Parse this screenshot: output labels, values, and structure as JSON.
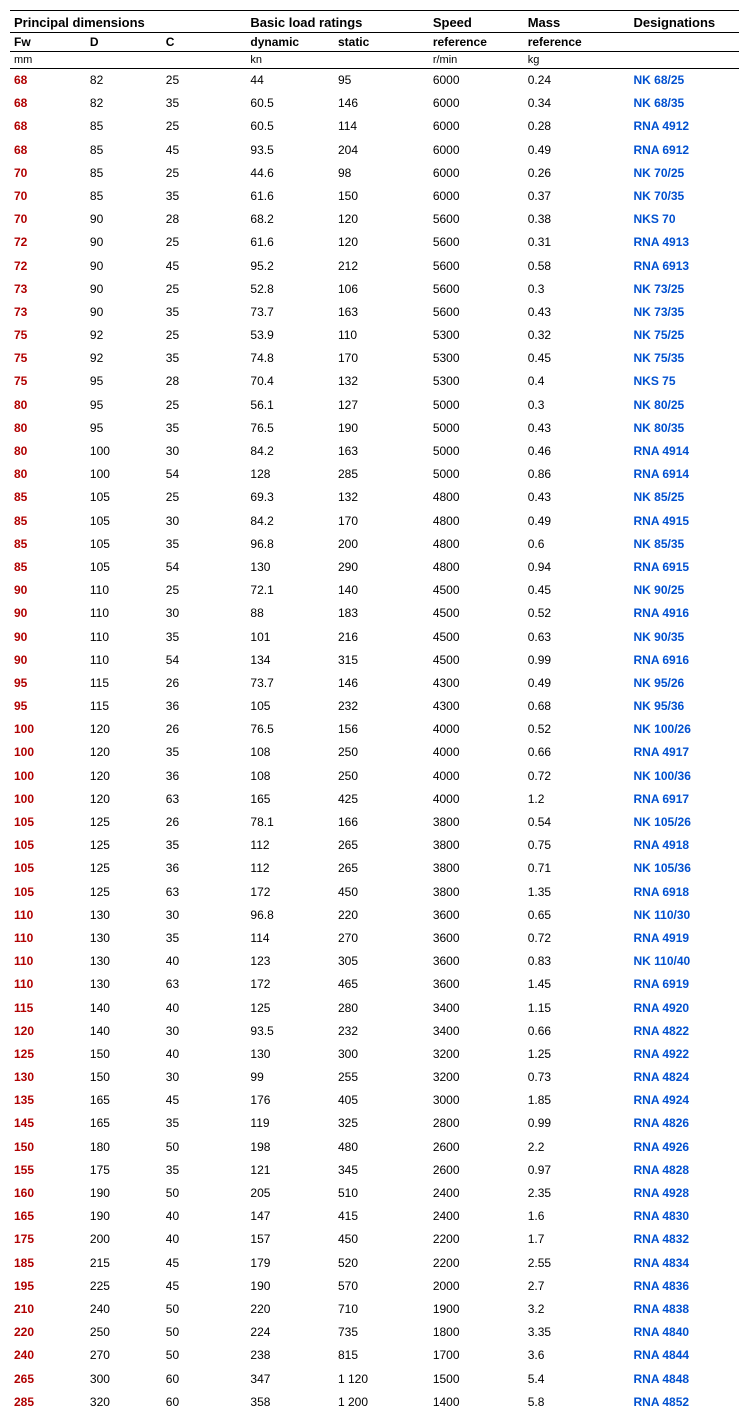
{
  "columns": {
    "group_principal": "Principal dimensions",
    "group_basic": "Basic load ratings",
    "group_speed": "Speed",
    "group_mass": "Mass",
    "group_designations": "Designations",
    "sub_fw": "Fw",
    "sub_d": "D",
    "sub_c": "C",
    "sub_dynamic": "dynamic",
    "sub_static": "static",
    "sub_speed": "reference",
    "sub_mass": "reference",
    "unit_mm": "mm",
    "unit_kn": "kn",
    "unit_speed": "r/min",
    "unit_mass": "kg"
  },
  "colors": {
    "fw_color": "#b00000",
    "link_color": "#0050d0",
    "text_color": "#000000",
    "background": "#ffffff",
    "border": "#000000"
  },
  "rows": [
    {
      "fw": "68",
      "d": "82",
      "c": "25",
      "dyn": "44",
      "stat": "95",
      "speed": "6000",
      "mass": "0.24",
      "des": "NK 68/25"
    },
    {
      "fw": "68",
      "d": "82",
      "c": "35",
      "dyn": "60.5",
      "stat": "146",
      "speed": "6000",
      "mass": "0.34",
      "des": "NK 68/35"
    },
    {
      "fw": "68",
      "d": "85",
      "c": "25",
      "dyn": "60.5",
      "stat": "114",
      "speed": "6000",
      "mass": "0.28",
      "des": "RNA 4912"
    },
    {
      "fw": "68",
      "d": "85",
      "c": "45",
      "dyn": "93.5",
      "stat": "204",
      "speed": "6000",
      "mass": "0.49",
      "des": "RNA 6912"
    },
    {
      "fw": "70",
      "d": "85",
      "c": "25",
      "dyn": "44.6",
      "stat": "98",
      "speed": "6000",
      "mass": "0.26",
      "des": "NK 70/25"
    },
    {
      "fw": "70",
      "d": "85",
      "c": "35",
      "dyn": "61.6",
      "stat": "150",
      "speed": "6000",
      "mass": "0.37",
      "des": "NK 70/35"
    },
    {
      "fw": "70",
      "d": "90",
      "c": "28",
      "dyn": "68.2",
      "stat": "120",
      "speed": "5600",
      "mass": "0.38",
      "des": "NKS 70"
    },
    {
      "fw": "72",
      "d": "90",
      "c": "25",
      "dyn": "61.6",
      "stat": "120",
      "speed": "5600",
      "mass": "0.31",
      "des": "RNA 4913"
    },
    {
      "fw": "72",
      "d": "90",
      "c": "45",
      "dyn": "95.2",
      "stat": "212",
      "speed": "5600",
      "mass": "0.58",
      "des": "RNA 6913"
    },
    {
      "fw": "73",
      "d": "90",
      "c": "25",
      "dyn": "52.8",
      "stat": "106",
      "speed": "5600",
      "mass": "0.3",
      "des": "NK 73/25"
    },
    {
      "fw": "73",
      "d": "90",
      "c": "35",
      "dyn": "73.7",
      "stat": "163",
      "speed": "5600",
      "mass": "0.43",
      "des": "NK 73/35"
    },
    {
      "fw": "75",
      "d": "92",
      "c": "25",
      "dyn": "53.9",
      "stat": "110",
      "speed": "5300",
      "mass": "0.32",
      "des": "NK 75/25"
    },
    {
      "fw": "75",
      "d": "92",
      "c": "35",
      "dyn": "74.8",
      "stat": "170",
      "speed": "5300",
      "mass": "0.45",
      "des": "NK 75/35"
    },
    {
      "fw": "75",
      "d": "95",
      "c": "28",
      "dyn": "70.4",
      "stat": "132",
      "speed": "5300",
      "mass": "0.4",
      "des": "NKS 75"
    },
    {
      "fw": "80",
      "d": "95",
      "c": "25",
      "dyn": "56.1",
      "stat": "127",
      "speed": "5000",
      "mass": "0.3",
      "des": "NK 80/25"
    },
    {
      "fw": "80",
      "d": "95",
      "c": "35",
      "dyn": "76.5",
      "stat": "190",
      "speed": "5000",
      "mass": "0.43",
      "des": "NK 80/35"
    },
    {
      "fw": "80",
      "d": "100",
      "c": "30",
      "dyn": "84.2",
      "stat": "163",
      "speed": "5000",
      "mass": "0.46",
      "des": "RNA 4914"
    },
    {
      "fw": "80",
      "d": "100",
      "c": "54",
      "dyn": "128",
      "stat": "285",
      "speed": "5000",
      "mass": "0.86",
      "des": "RNA 6914"
    },
    {
      "fw": "85",
      "d": "105",
      "c": "25",
      "dyn": "69.3",
      "stat": "132",
      "speed": "4800",
      "mass": "0.43",
      "des": "NK 85/25"
    },
    {
      "fw": "85",
      "d": "105",
      "c": "30",
      "dyn": "84.2",
      "stat": "170",
      "speed": "4800",
      "mass": "0.49",
      "des": "RNA 4915"
    },
    {
      "fw": "85",
      "d": "105",
      "c": "35",
      "dyn": "96.8",
      "stat": "200",
      "speed": "4800",
      "mass": "0.6",
      "des": "NK 85/35"
    },
    {
      "fw": "85",
      "d": "105",
      "c": "54",
      "dyn": "130",
      "stat": "290",
      "speed": "4800",
      "mass": "0.94",
      "des": "RNA 6915"
    },
    {
      "fw": "90",
      "d": "110",
      "c": "25",
      "dyn": "72.1",
      "stat": "140",
      "speed": "4500",
      "mass": "0.45",
      "des": "NK 90/25"
    },
    {
      "fw": "90",
      "d": "110",
      "c": "30",
      "dyn": "88",
      "stat": "183",
      "speed": "4500",
      "mass": "0.52",
      "des": "RNA 4916"
    },
    {
      "fw": "90",
      "d": "110",
      "c": "35",
      "dyn": "101",
      "stat": "216",
      "speed": "4500",
      "mass": "0.63",
      "des": "NK 90/35"
    },
    {
      "fw": "90",
      "d": "110",
      "c": "54",
      "dyn": "134",
      "stat": "315",
      "speed": "4500",
      "mass": "0.99",
      "des": "RNA 6916"
    },
    {
      "fw": "95",
      "d": "115",
      "c": "26",
      "dyn": "73.7",
      "stat": "146",
      "speed": "4300",
      "mass": "0.49",
      "des": "NK 95/26"
    },
    {
      "fw": "95",
      "d": "115",
      "c": "36",
      "dyn": "105",
      "stat": "232",
      "speed": "4300",
      "mass": "0.68",
      "des": "NK 95/36"
    },
    {
      "fw": "100",
      "d": "120",
      "c": "26",
      "dyn": "76.5",
      "stat": "156",
      "speed": "4000",
      "mass": "0.52",
      "des": "NK 100/26"
    },
    {
      "fw": "100",
      "d": "120",
      "c": "35",
      "dyn": "108",
      "stat": "250",
      "speed": "4000",
      "mass": "0.66",
      "des": "RNA 4917"
    },
    {
      "fw": "100",
      "d": "120",
      "c": "36",
      "dyn": "108",
      "stat": "250",
      "speed": "4000",
      "mass": "0.72",
      "des": "NK 100/36"
    },
    {
      "fw": "100",
      "d": "120",
      "c": "63",
      "dyn": "165",
      "stat": "425",
      "speed": "4000",
      "mass": "1.2",
      "des": "RNA 6917"
    },
    {
      "fw": "105",
      "d": "125",
      "c": "26",
      "dyn": "78.1",
      "stat": "166",
      "speed": "3800",
      "mass": "0.54",
      "des": "NK 105/26"
    },
    {
      "fw": "105",
      "d": "125",
      "c": "35",
      "dyn": "112",
      "stat": "265",
      "speed": "3800",
      "mass": "0.75",
      "des": "RNA 4918"
    },
    {
      "fw": "105",
      "d": "125",
      "c": "36",
      "dyn": "112",
      "stat": "265",
      "speed": "3800",
      "mass": "0.71",
      "des": "NK 105/36"
    },
    {
      "fw": "105",
      "d": "125",
      "c": "63",
      "dyn": "172",
      "stat": "450",
      "speed": "3800",
      "mass": "1.35",
      "des": "RNA 6918"
    },
    {
      "fw": "110",
      "d": "130",
      "c": "30",
      "dyn": "96.8",
      "stat": "220",
      "speed": "3600",
      "mass": "0.65",
      "des": "NK 110/30"
    },
    {
      "fw": "110",
      "d": "130",
      "c": "35",
      "dyn": "114",
      "stat": "270",
      "speed": "3600",
      "mass": "0.72",
      "des": "RNA 4919"
    },
    {
      "fw": "110",
      "d": "130",
      "c": "40",
      "dyn": "123",
      "stat": "305",
      "speed": "3600",
      "mass": "0.83",
      "des": "NK 110/40"
    },
    {
      "fw": "110",
      "d": "130",
      "c": "63",
      "dyn": "172",
      "stat": "465",
      "speed": "3600",
      "mass": "1.45",
      "des": "RNA 6919"
    },
    {
      "fw": "115",
      "d": "140",
      "c": "40",
      "dyn": "125",
      "stat": "280",
      "speed": "3400",
      "mass": "1.15",
      "des": "RNA 4920"
    },
    {
      "fw": "120",
      "d": "140",
      "c": "30",
      "dyn": "93.5",
      "stat": "232",
      "speed": "3400",
      "mass": "0.66",
      "des": "RNA 4822"
    },
    {
      "fw": "125",
      "d": "150",
      "c": "40",
      "dyn": "130",
      "stat": "300",
      "speed": "3200",
      "mass": "1.25",
      "des": "RNA 4922"
    },
    {
      "fw": "130",
      "d": "150",
      "c": "30",
      "dyn": "99",
      "stat": "255",
      "speed": "3200",
      "mass": "0.73",
      "des": "RNA 4824"
    },
    {
      "fw": "135",
      "d": "165",
      "c": "45",
      "dyn": "176",
      "stat": "405",
      "speed": "3000",
      "mass": "1.85",
      "des": "RNA 4924"
    },
    {
      "fw": "145",
      "d": "165",
      "c": "35",
      "dyn": "119",
      "stat": "325",
      "speed": "2800",
      "mass": "0.99",
      "des": "RNA 4826"
    },
    {
      "fw": "150",
      "d": "180",
      "c": "50",
      "dyn": "198",
      "stat": "480",
      "speed": "2600",
      "mass": "2.2",
      "des": "RNA 4926"
    },
    {
      "fw": "155",
      "d": "175",
      "c": "35",
      "dyn": "121",
      "stat": "345",
      "speed": "2600",
      "mass": "0.97",
      "des": "RNA 4828"
    },
    {
      "fw": "160",
      "d": "190",
      "c": "50",
      "dyn": "205",
      "stat": "510",
      "speed": "2400",
      "mass": "2.35",
      "des": "RNA 4928"
    },
    {
      "fw": "165",
      "d": "190",
      "c": "40",
      "dyn": "147",
      "stat": "415",
      "speed": "2400",
      "mass": "1.6",
      "des": "RNA 4830"
    },
    {
      "fw": "175",
      "d": "200",
      "c": "40",
      "dyn": "157",
      "stat": "450",
      "speed": "2200",
      "mass": "1.7",
      "des": "RNA 4832"
    },
    {
      "fw": "185",
      "d": "215",
      "c": "45",
      "dyn": "179",
      "stat": "520",
      "speed": "2200",
      "mass": "2.55",
      "des": "RNA 4834"
    },
    {
      "fw": "195",
      "d": "225",
      "c": "45",
      "dyn": "190",
      "stat": "570",
      "speed": "2000",
      "mass": "2.7",
      "des": "RNA 4836"
    },
    {
      "fw": "210",
      "d": "240",
      "c": "50",
      "dyn": "220",
      "stat": "710",
      "speed": "1900",
      "mass": "3.2",
      "des": "RNA 4838"
    },
    {
      "fw": "220",
      "d": "250",
      "c": "50",
      "dyn": "224",
      "stat": "735",
      "speed": "1800",
      "mass": "3.35",
      "des": "RNA 4840"
    },
    {
      "fw": "240",
      "d": "270",
      "c": "50",
      "dyn": "238",
      "stat": "815",
      "speed": "1700",
      "mass": "3.6",
      "des": "RNA 4844"
    },
    {
      "fw": "265",
      "d": "300",
      "c": "60",
      "dyn": "347",
      "stat": "1 120",
      "speed": "1500",
      "mass": "5.4",
      "des": "RNA 4848"
    },
    {
      "fw": "285",
      "d": "320",
      "c": "60",
      "dyn": "358",
      "stat": "1 200",
      "speed": "1400",
      "mass": "5.8",
      "des": "RNA 4852"
    }
  ]
}
